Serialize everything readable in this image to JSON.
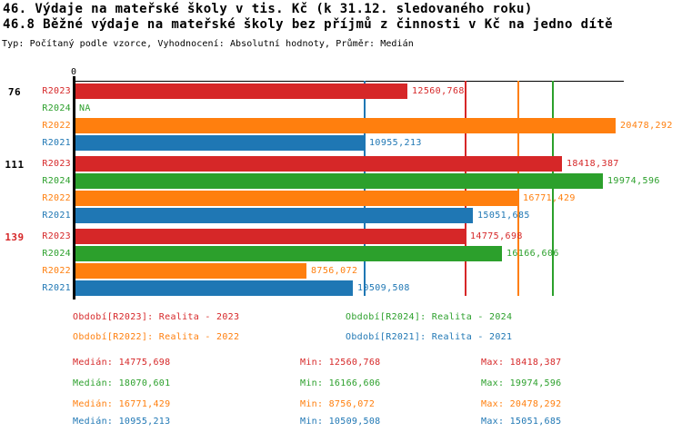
{
  "header": {
    "title1": "46. Výdaje na mateřské školy v tis. Kč (k 31.12. sledovaného roku)",
    "title2": "46.8 Běžné výdaje na mateřské školy bez příjmů z činnosti v Kč na jedno dítě",
    "meta": "Typ: Počítaný podle vzorce, Vyhodnocení: Absolutní hodnoty, Průměr: Medián"
  },
  "colors": {
    "R2023": "#d62728",
    "R2024": "#2ca02c",
    "R2022": "#ff7f0e",
    "R2021": "#1f77b4",
    "axis": "#000000"
  },
  "chart_data": {
    "type": "bar",
    "orientation": "horizontal",
    "title": "46.8 Běžné výdaje na mateřské školy bez příjmů z činnosti v Kč na jedno dítě",
    "value_axis": {
      "zero_label": "0",
      "min": 0,
      "approx_max": 20900,
      "grid": false
    },
    "categories": [
      "76",
      "111",
      "139"
    ],
    "series_order": [
      "R2023",
      "R2024",
      "R2022",
      "R2021"
    ],
    "groups": [
      {
        "label": "76",
        "label_color": "#000000",
        "bars": [
          {
            "series": "R2023",
            "value": 12560.768,
            "label": "12560,768"
          },
          {
            "series": "R2024",
            "value": null,
            "label": "NA"
          },
          {
            "series": "R2022",
            "value": 20478.292,
            "label": "20478,292"
          },
          {
            "series": "R2021",
            "value": 10955.213,
            "label": "10955,213"
          }
        ]
      },
      {
        "label": "111",
        "label_color": "#000000",
        "bars": [
          {
            "series": "R2023",
            "value": 18418.387,
            "label": "18418,387"
          },
          {
            "series": "R2024",
            "value": 19974.596,
            "label": "19974,596"
          },
          {
            "series": "R2022",
            "value": 16771.429,
            "label": "16771,429"
          },
          {
            "series": "R2021",
            "value": 15051.685,
            "label": "15051,685"
          }
        ]
      },
      {
        "label": "139",
        "label_color": "#d62728",
        "bars": [
          {
            "series": "R2023",
            "value": 14775.698,
            "label": "14775,698"
          },
          {
            "series": "R2024",
            "value": 16166.606,
            "label": "16166,606"
          },
          {
            "series": "R2022",
            "value": 8756.072,
            "label": "8756,072"
          },
          {
            "series": "R2021",
            "value": 10509.508,
            "label": "10509,508"
          }
        ]
      }
    ],
    "median_lines": [
      {
        "series": "R2023",
        "value": 14775.698
      },
      {
        "series": "R2024",
        "value": 18070.601
      },
      {
        "series": "R2022",
        "value": 16771.429
      },
      {
        "series": "R2021",
        "value": 10955.213
      }
    ]
  },
  "legend": {
    "items": [
      {
        "series": "R2023",
        "label": "Období[R2023]: Realita - 2023"
      },
      {
        "series": "R2024",
        "label": "Období[R2024]: Realita - 2024"
      },
      {
        "series": "R2022",
        "label": "Období[R2022]: Realita - 2022"
      },
      {
        "series": "R2021",
        "label": "Období[R2021]: Realita - 2021"
      }
    ]
  },
  "stats": {
    "rows": [
      {
        "series": "R2023",
        "median": "Medián: 14775,698",
        "min": "Min: 12560,768",
        "max": "Max: 18418,387"
      },
      {
        "series": "R2024",
        "median": "Medián: 18070,601",
        "min": "Min: 16166,606",
        "max": "Max: 19974,596"
      },
      {
        "series": "R2022",
        "median": "Medián: 16771,429",
        "min": "Min: 8756,072",
        "max": "Max: 20478,292"
      },
      {
        "series": "R2021",
        "median": "Medián: 10955,213",
        "min": "Min: 10509,508",
        "max": "Max: 15051,685"
      }
    ]
  }
}
